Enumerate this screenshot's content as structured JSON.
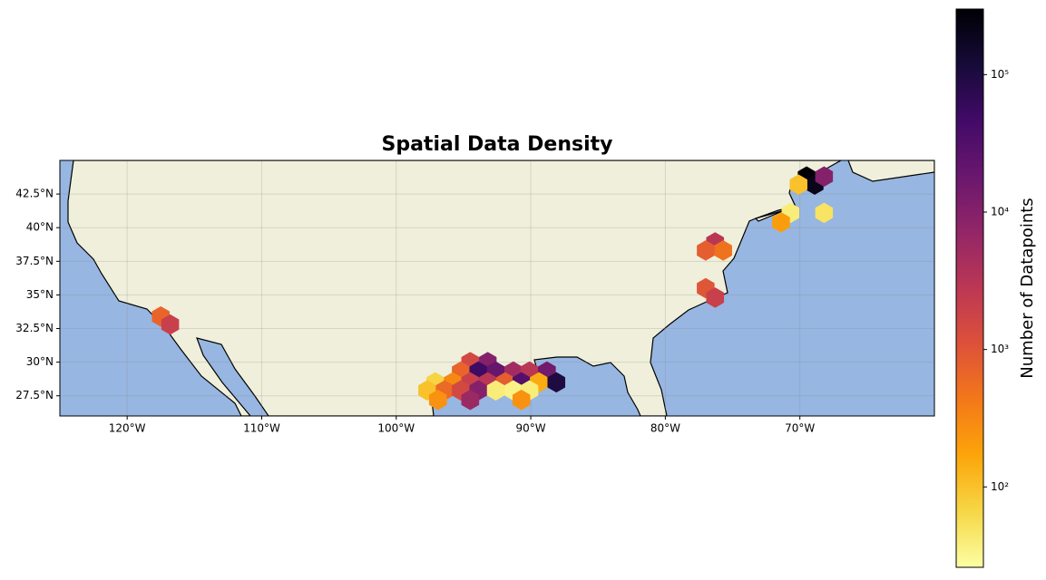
{
  "chart_data": {
    "type": "hexbin",
    "title": "Spatial Data Density",
    "xlim": [
      -125,
      -60
    ],
    "ylim": [
      26,
      45
    ],
    "xticks": [
      {
        "value": -120,
        "label": "120°W"
      },
      {
        "value": -110,
        "label": "110°W"
      },
      {
        "value": -100,
        "label": "100°W"
      },
      {
        "value": -90,
        "label": "90°W"
      },
      {
        "value": -80,
        "label": "80°W"
      },
      {
        "value": -70,
        "label": "70°W"
      }
    ],
    "yticks": [
      {
        "value": 27.5,
        "label": "27.5°N"
      },
      {
        "value": 30,
        "label": "30°N"
      },
      {
        "value": 32.5,
        "label": "32.5°N"
      },
      {
        "value": 35,
        "label": "35°N"
      },
      {
        "value": 37.5,
        "label": "37.5°N"
      },
      {
        "value": 40,
        "label": "40°N"
      },
      {
        "value": 42.5,
        "label": "42.5°N"
      }
    ],
    "grid": true,
    "x": [
      -69.5,
      -68.9,
      -68.2,
      -70.1,
      -70.7,
      -68.2,
      -71.4,
      -76.3,
      -75.7,
      -77.0,
      -77.0,
      -76.3,
      -117.5,
      -116.8,
      -94.5,
      -93.2,
      -95.2,
      -93.9,
      -92.6,
      -91.3,
      -90.1,
      -88.8,
      -97.1,
      -95.8,
      -94.5,
      -93.2,
      -91.9,
      -90.7,
      -89.4,
      -88.1,
      -97.7,
      -96.4,
      -95.2,
      -93.9,
      -92.6,
      -91.3,
      -90.1,
      -96.9,
      -94.5,
      -90.7
    ],
    "y": [
      43.8,
      43.2,
      43.8,
      43.2,
      41.1,
      41.1,
      40.4,
      38.9,
      38.3,
      38.3,
      35.5,
      34.8,
      33.4,
      32.8,
      30.0,
      30.0,
      29.3,
      29.3,
      29.3,
      29.3,
      29.3,
      29.3,
      28.5,
      28.5,
      28.5,
      28.5,
      28.5,
      28.5,
      28.5,
      28.5,
      27.9,
      27.9,
      27.9,
      27.9,
      27.9,
      27.9,
      27.9,
      27.2,
      27.2,
      27.2
    ],
    "values": [
      300000,
      200000,
      10000,
      100,
      40,
      50,
      200,
      3000,
      500,
      800,
      1000,
      2000,
      700,
      2000,
      1500,
      10000,
      700,
      50000,
      20000,
      5000,
      3000,
      15000,
      70,
      300,
      2000,
      3000,
      800,
      30000,
      150,
      100000,
      100,
      600,
      1500,
      10000,
      40,
      35,
      40,
      250,
      6000,
      250
    ],
    "colormap": [
      "#fcffa4",
      "#f6d746",
      "#fca50a",
      "#f37819",
      "#dd513a",
      "#bc3754",
      "#932667",
      "#6a176e",
      "#420a68",
      "#160b39",
      "#000004"
    ],
    "colorbar": {
      "label": "Number of Datapoints",
      "scale": "log",
      "lim": [
        26,
        300000
      ],
      "ticks": [
        {
          "value": 100,
          "label": "10²"
        },
        {
          "value": 1000,
          "label": "10³"
        },
        {
          "value": 10000,
          "label": "10⁴"
        },
        {
          "value": 100000,
          "label": "10⁵"
        }
      ]
    }
  }
}
